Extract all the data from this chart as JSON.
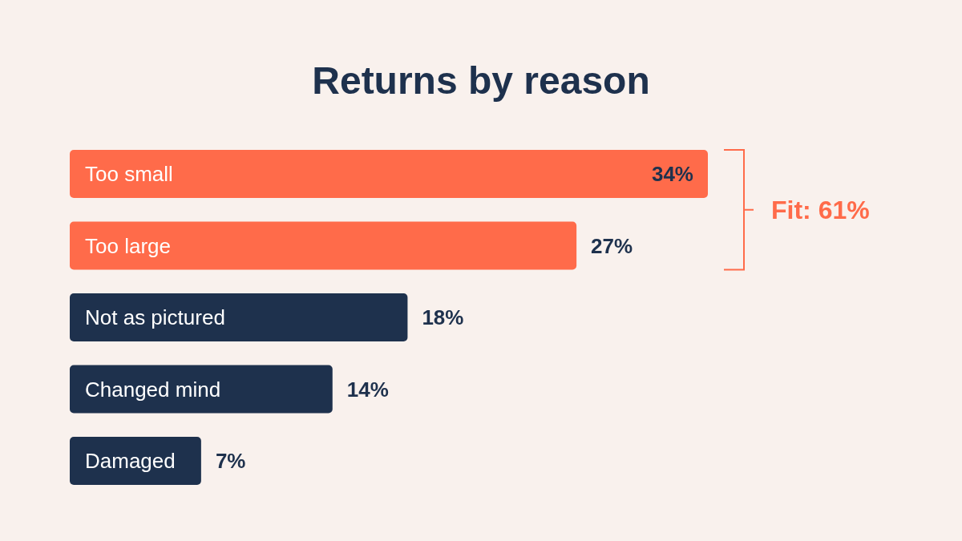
{
  "chart_data": {
    "type": "bar",
    "title": "Returns by reason",
    "orientation": "horizontal",
    "categories": [
      "Too small",
      "Too large",
      "Not as pictured",
      "Changed mind",
      "Damaged"
    ],
    "values": [
      34,
      27,
      18,
      14,
      7
    ],
    "colors": [
      "#ff6b4a",
      "#ff6b4a",
      "#1e314d",
      "#1e314d",
      "#1e314d"
    ],
    "value_labels": [
      "34%",
      "27%",
      "18%",
      "14%",
      "7%"
    ],
    "annotations": [
      "Fit: 61%"
    ]
  }
}
